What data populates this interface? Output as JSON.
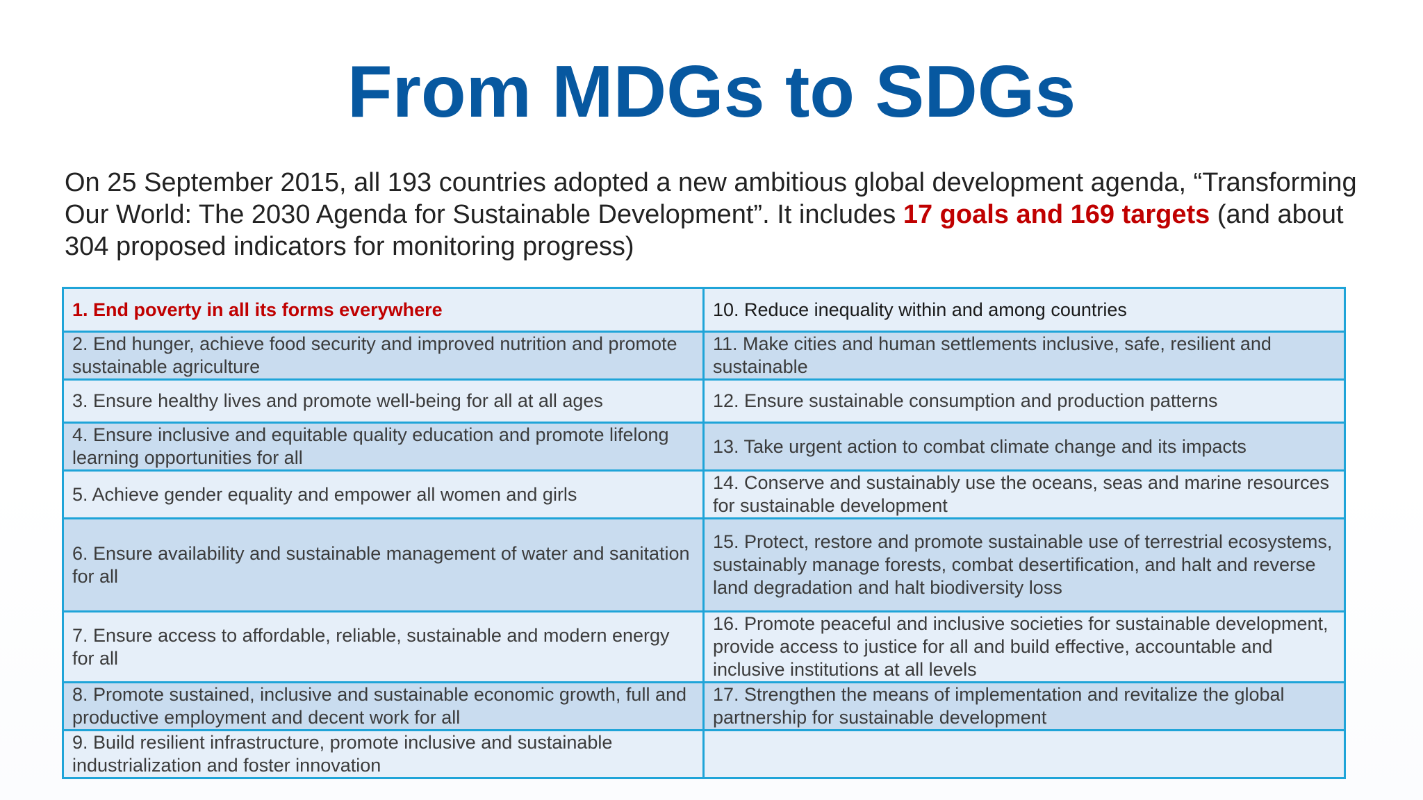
{
  "title": "From MDGs to SDGs",
  "intro": {
    "part1": "On 25 September 2015, all 193 countries adopted a new ambitious global development agenda, “Transforming Our World: The 2030 Agenda for Sustainable Development”. It includes ",
    "highlight": "17 goals and 169 targets",
    "part2": " (and about 304 proposed indicators for monitoring progress)"
  },
  "colors": {
    "title": "#0758a0",
    "highlight": "#c00000",
    "border": "#1fa4d8",
    "row_light": "#e6eff9",
    "row_dark": "#c9dcef"
  },
  "goals": {
    "left": [
      "1. End poverty in all its forms everywhere",
      "2. End hunger, achieve food security and improved nutrition and promote sustainable agriculture",
      "3. Ensure healthy lives and promote well-being for all at all ages",
      "4. Ensure inclusive and equitable quality education and promote lifelong learning opportunities for all",
      "5. Achieve gender equality and empower all women and girls",
      "6. Ensure availability and sustainable management of water and sanitation for all",
      "7. Ensure access to affordable, reliable, sustainable and modern energy for all",
      "8. Promote sustained, inclusive and sustainable economic growth, full and productive employment and decent work for all",
      "9. Build resilient infrastructure, promote inclusive and sustainable industrialization and foster innovation"
    ],
    "right": [
      "10. Reduce inequality within and among countries",
      "11. Make cities and human settlements inclusive, safe, resilient and sustainable",
      "12. Ensure sustainable consumption and production patterns",
      "13. Take urgent action to combat climate change and its impacts",
      "14. Conserve and sustainably use the oceans, seas and marine resources for sustainable development",
      "15. Protect, restore and promote sustainable use of terrestrial ecosystems, sustainably manage forests, combat desertification, and halt and reverse land degradation and halt biodiversity loss",
      "16. Promote peaceful and inclusive societies for sustainable development, provide access to justice for all and build effective, accountable and inclusive institutions at all levels",
      "17. Strengthen the means of implementation and revitalize the global partnership for sustainable development",
      ""
    ]
  }
}
